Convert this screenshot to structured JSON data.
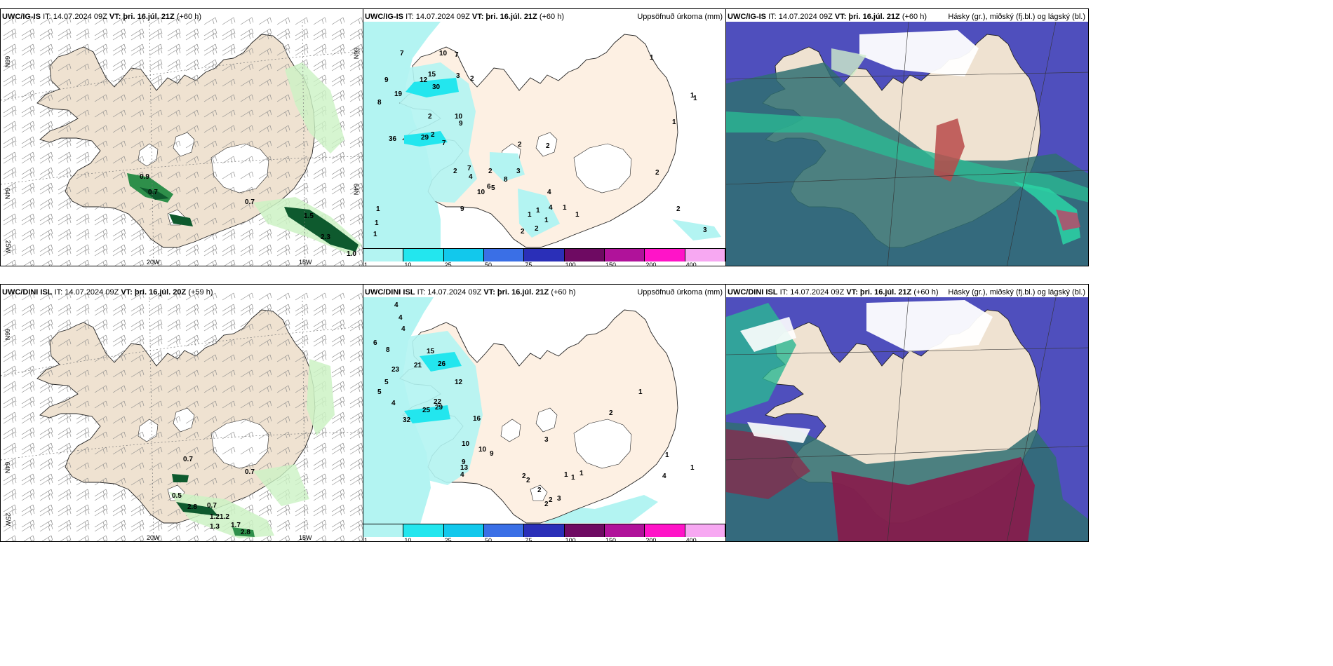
{
  "colors": {
    "land": "#efe2d1",
    "ice": "#ffffff",
    "precip_light": "#b3f4f2",
    "precip_mid": "#23e6ee",
    "cloud_high": "#4f4fbd",
    "cloud_mid": "#2bb892",
    "cloud_low": "#2f6f72",
    "green_light": "#ccf2c4",
    "green_dark": "#0e5a2e"
  },
  "rows": [
    {
      "wind": {
        "model": "UWC/IG-IS",
        "it": "IT: 14.07.2024 09Z",
        "vt": "VT: þri. 16.júl. 21Z",
        "lead": "(+60 h)",
        "lat_labels": [
          "66N",
          "64N",
          "25W"
        ],
        "lat_labels_right": [
          "66N",
          "64N"
        ],
        "lon_labels": [
          "20W",
          "15W"
        ],
        "values": [
          "0.9",
          "0.7",
          "0.7",
          "1.5",
          "2.3",
          "1.0"
        ]
      },
      "precip": {
        "model": "UWC/IG-IS",
        "it": "IT: 14.07.2024 09Z",
        "vt": "VT: þri. 16.júl. 21Z",
        "lead": "(+60 h)",
        "right": "Uppsöfnuð úrkoma (mm)",
        "values": [
          "7",
          "9",
          "8",
          "19",
          "12",
          "30",
          "15",
          "10",
          "7",
          "3",
          "2",
          "2",
          "36",
          "29",
          "10",
          "9",
          "7",
          "2",
          "2",
          "4",
          "6",
          "2",
          "5",
          "10",
          "9",
          "7",
          "8",
          "3",
          "2",
          "2",
          "1",
          "1",
          "1",
          "1",
          "1",
          "1",
          "1",
          "2",
          "2",
          "3",
          "4",
          "4",
          "1",
          "1",
          "1",
          "1",
          "1",
          "2",
          "2"
        ]
      },
      "cloud": {
        "model": "UWC/IG-IS",
        "it": "IT: 14.07.2024 09Z",
        "vt": "VT: þri. 16.júl. 21Z",
        "lead": "(+60 h)",
        "right": "Hásky (gr.), miðský (fj.bl.) og lágský (bl.)"
      }
    },
    {
      "wind": {
        "model": "UWC/DINI ISL",
        "it": "IT: 14.07.2024 09Z",
        "vt": "VT: þri. 16.júl. 20Z",
        "lead": "(+59 h)",
        "lat_labels": [
          "66N",
          "64N",
          "25W"
        ],
        "lat_labels_right": [],
        "lon_labels": [
          "20W",
          "15W"
        ],
        "values": [
          "0.7",
          "0.7",
          "0.5",
          "2.8",
          "0.7",
          "1.2",
          "1.2",
          "1.3",
          "1.7",
          "2.8"
        ]
      },
      "precip": {
        "model": "UWC/DINI ISL",
        "it": "IT: 14.07.2024 09Z",
        "vt": "VT: þri. 16.júl. 21Z",
        "lead": "(+60 h)",
        "right": "Uppsöfnuð úrkoma (mm)",
        "values": [
          "4",
          "4",
          "4",
          "6",
          "5",
          "5",
          "4",
          "8",
          "15",
          "26",
          "23",
          "21",
          "12",
          "29",
          "22",
          "25",
          "32",
          "16",
          "10",
          "10",
          "9",
          "9",
          "13",
          "4",
          "2",
          "2",
          "2",
          "1",
          "1",
          "1",
          "2",
          "2",
          "3",
          "3",
          "2",
          "1",
          "1",
          "4",
          "1"
        ]
      },
      "cloud": {
        "model": "UWC/DINI ISL",
        "it": "IT: 14.07.2024 09Z",
        "vt": "VT: þri. 16.júl. 21Z",
        "lead": "(+60 h)",
        "right": "Hásky (gr.), miðský (fj.bl.) og lágský (bl.)"
      }
    }
  ],
  "colorbar": {
    "labels": [
      "1",
      "10",
      "25",
      "50",
      "75",
      "100",
      "150",
      "200",
      "400"
    ],
    "colors": [
      "#b3f4f2",
      "#23e6ee",
      "#12c8ec",
      "#3a6fe6",
      "#2a2fb8",
      "#6e0a62",
      "#b0129a",
      "#ff14c8",
      "#f7a8f2"
    ]
  }
}
